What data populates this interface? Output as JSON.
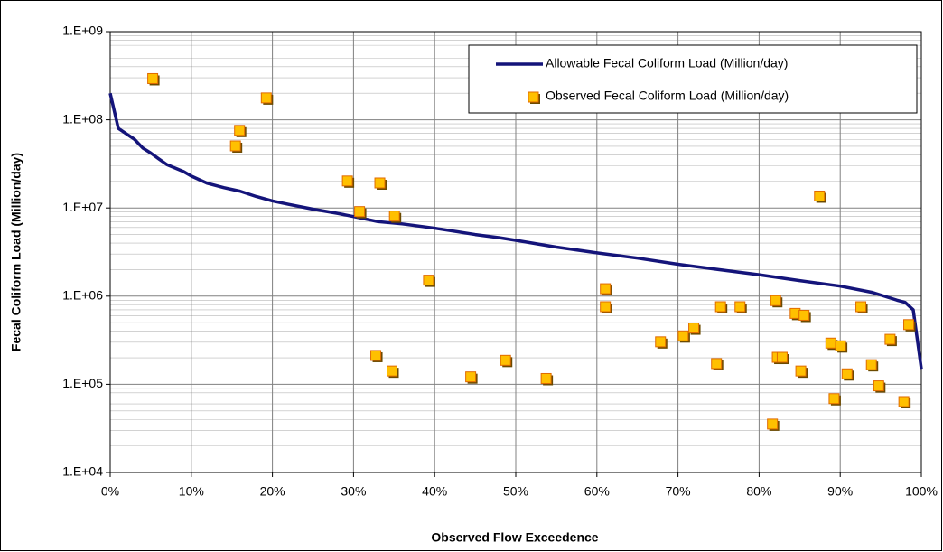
{
  "chart_data": {
    "type": "scatter",
    "x_label": "Observed Flow Exceedence",
    "y_label": "Fecal Coliform Load (Million/day)",
    "xlim": [
      0,
      100
    ],
    "xticks": [
      {
        "value": 0,
        "label": "0%"
      },
      {
        "value": 10,
        "label": "10%"
      },
      {
        "value": 20,
        "label": "20%"
      },
      {
        "value": 30,
        "label": "30%"
      },
      {
        "value": 40,
        "label": "40%"
      },
      {
        "value": 50,
        "label": "50%"
      },
      {
        "value": 60,
        "label": "60%"
      },
      {
        "value": 70,
        "label": "70%"
      },
      {
        "value": 80,
        "label": "80%"
      },
      {
        "value": 90,
        "label": "90%"
      },
      {
        "value": 100,
        "label": "100%"
      }
    ],
    "ylim": [
      10000,
      1000000000
    ],
    "yticks": [
      {
        "value": 10000,
        "label": "1.E+04"
      },
      {
        "value": 100000,
        "label": "1.E+05"
      },
      {
        "value": 1000000,
        "label": "1.E+06"
      },
      {
        "value": 10000000,
        "label": "1.E+07"
      },
      {
        "value": 100000000,
        "label": "1.E+08"
      },
      {
        "value": 1000000000,
        "label": "1.E+09"
      }
    ],
    "y_scale": "log",
    "grid": true,
    "minor_grid": true,
    "legend": "upper right",
    "series": [
      {
        "name": "Allowable Fecal Coliform Load (Million/day)",
        "type": "line",
        "color": "#14147a",
        "x": [
          0,
          1,
          3,
          4,
          5,
          6,
          7,
          9,
          10,
          12,
          14,
          16,
          18,
          20,
          22,
          25,
          28,
          30,
          33,
          36,
          40,
          45,
          48,
          50,
          55,
          60,
          65,
          70,
          75,
          80,
          85,
          90,
          94,
          97,
          98,
          99,
          100
        ],
        "values": [
          200000000,
          80000000,
          60000000,
          48000000,
          42000000,
          36000000,
          31000000,
          26000000,
          23000000,
          19000000,
          17000000,
          15500000,
          13500000,
          12000000,
          11000000,
          9700000,
          8700000,
          8000000,
          7000000,
          6600000,
          5900000,
          5000000,
          4600000,
          4300000,
          3600000,
          3100000,
          2700000,
          2300000,
          2000000,
          1750000,
          1500000,
          1300000,
          1100000,
          900000,
          850000,
          700000,
          150000
        ]
      },
      {
        "name": "Observed Fecal Coliform Load (Million/day)",
        "type": "scatter",
        "color": "#ffc000",
        "x": [
          5.3,
          15.5,
          16,
          19.3,
          29.3,
          30.8,
          33.3,
          35.1,
          32.8,
          34.8,
          39.3,
          44.5,
          48.8,
          53.8,
          61.1,
          61.1,
          67.9,
          70.7,
          72,
          74.8,
          75.3,
          77.7,
          81.7,
          82.1,
          82.3,
          82.9,
          84.5,
          85.2,
          85.6,
          87.5,
          88.9,
          89.3,
          90.1,
          90.9,
          92.6,
          93.9,
          94.8,
          96.2,
          97.9,
          98.5
        ],
        "values": [
          290000000,
          50000000,
          75000000,
          175000000,
          20000000,
          9000000,
          19000000,
          8000000,
          210000,
          140000,
          1500000,
          120000,
          185000,
          115000,
          1200000,
          750000,
          300000,
          350000,
          430000,
          170000,
          750000,
          750000,
          35000,
          880000,
          200000,
          200000,
          630000,
          140000,
          600000,
          13500000,
          290000,
          68000,
          270000,
          130000,
          750000,
          165000,
          95000,
          320000,
          63000,
          470000
        ]
      }
    ]
  }
}
